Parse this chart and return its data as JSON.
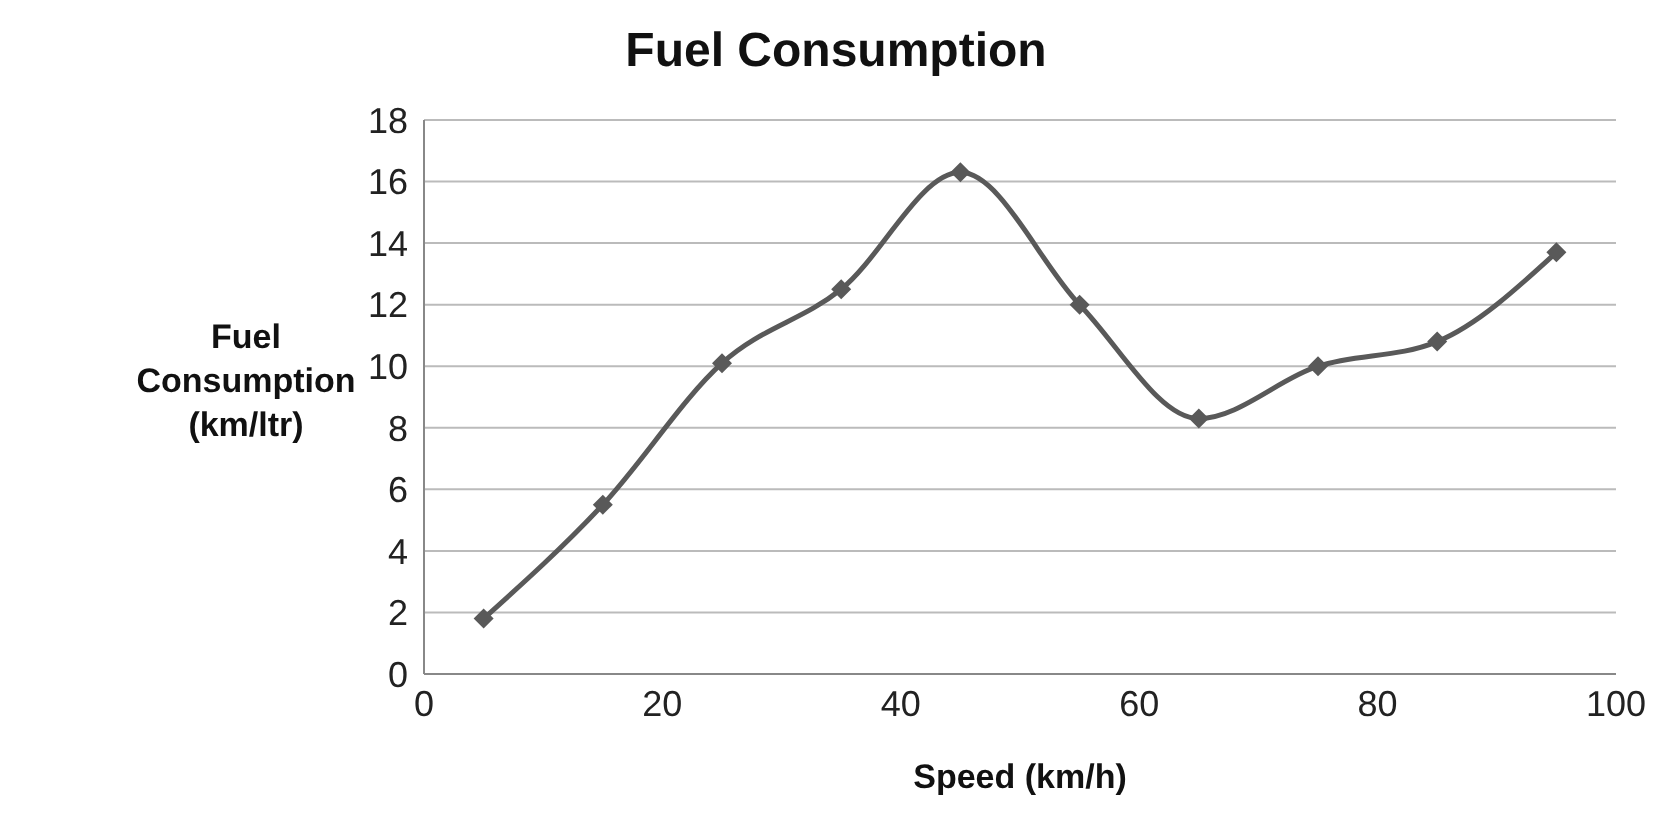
{
  "chart_data": {
    "type": "line",
    "title": "Fuel Consumption",
    "xlabel": "Speed (km/h)",
    "ylabel": "Fuel Consumption (km/ltr)",
    "x": [
      5,
      15,
      25,
      35,
      45,
      55,
      65,
      75,
      85,
      95
    ],
    "series": [
      {
        "color": "#595959",
        "values": [
          1.8,
          5.5,
          10.1,
          12.5,
          16.3,
          12.0,
          8.3,
          10.0,
          10.8,
          13.7
        ]
      }
    ],
    "xlim": [
      0,
      100
    ],
    "xticks": [
      0,
      20,
      40,
      60,
      80,
      100
    ],
    "ylim": [
      0,
      18
    ],
    "yticks": [
      0,
      2,
      4,
      6,
      8,
      10,
      12,
      14,
      16,
      18
    ],
    "grid": "y",
    "legend": false,
    "marker": "diamond",
    "line_style": "solid"
  }
}
